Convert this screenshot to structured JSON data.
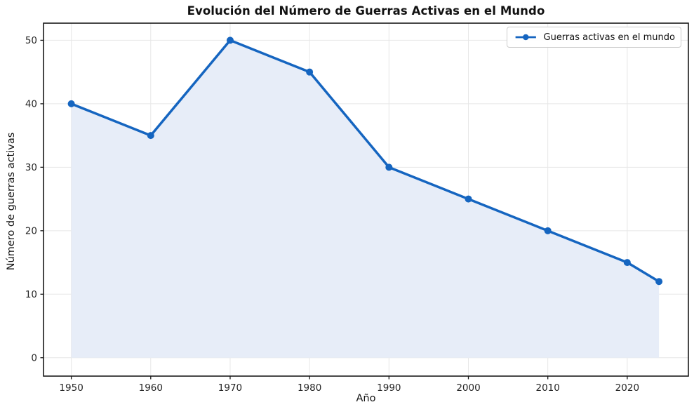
{
  "chart_data": {
    "type": "line",
    "title": "Evolución del Número de Guerras Activas en el Mundo",
    "xlabel": "Año",
    "ylabel": "Número de guerras activas",
    "series": [
      {
        "name": "Guerras activas en el mundo",
        "x": [
          1950,
          1960,
          1970,
          1980,
          1990,
          2000,
          2010,
          2020,
          2024
        ],
        "y": [
          40,
          35,
          50,
          45,
          30,
          25,
          20,
          15,
          12
        ]
      }
    ],
    "xticks": [
      1950,
      1960,
      1970,
      1980,
      1990,
      2000,
      2010,
      2020
    ],
    "yticks": [
      0,
      10,
      20,
      30,
      40,
      50
    ],
    "xlim": [
      1946.5,
      2027.7
    ],
    "ylim": [
      -2.9,
      52.7
    ],
    "grid": true,
    "area_fill_to": 0,
    "legend_position": "upper right",
    "colors": {
      "line": "#1565c0",
      "marker": "#1565c0",
      "area_fill": "#e7edf8",
      "grid": "#e7e7e7",
      "spine": "#1a1a1a",
      "tick_label": "#262626",
      "legend_border": "#cccccc"
    },
    "marker": "circle",
    "line_width": 3.5,
    "marker_radius": 5
  }
}
